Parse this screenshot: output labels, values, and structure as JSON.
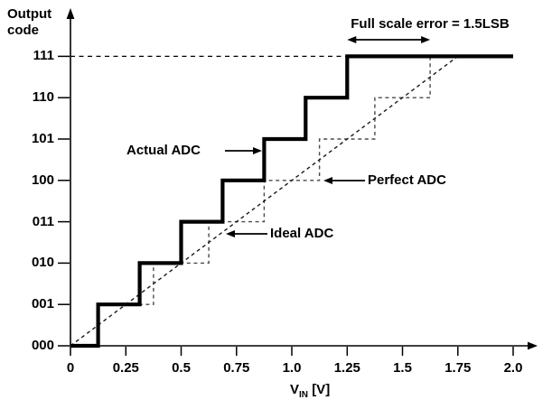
{
  "y_axis_title": {
    "line1": "Output",
    "line2": "code"
  },
  "x_axis_title": {
    "main": "V",
    "sub": "IN",
    "unit": "[V]"
  },
  "chart_data": {
    "type": "line",
    "subtype": "ADC transfer characteristic (staircase)",
    "title": "",
    "xlabel": "VIN [V]",
    "ylabel": "Output code",
    "xlim": [
      0,
      2.0
    ],
    "grid": false,
    "x_tick_values": [
      0,
      0.25,
      0.5,
      0.75,
      1.0,
      1.25,
      1.5,
      1.75,
      2.0
    ],
    "x_tick_labels": [
      "0",
      "0.25",
      "0.5",
      "0.75",
      "1.0",
      "1.25",
      "1.5",
      "1.75",
      "2.0"
    ],
    "y_tick_codes": [
      0,
      1,
      2,
      3,
      4,
      5,
      6,
      7
    ],
    "y_tick_labels": [
      "000",
      "001",
      "010",
      "011",
      "100",
      "101",
      "110",
      "111"
    ],
    "series": [
      {
        "name": "Actual ADC",
        "type": "staircase",
        "style": "solid-thick",
        "color": "#000000",
        "start_code": 0,
        "transitions_V": [
          0.125,
          0.3125,
          0.5,
          0.6875,
          0.875,
          1.0625,
          1.25
        ],
        "end_V": 2.0
      },
      {
        "name": "Perfect ADC",
        "type": "staircase",
        "style": "dashed",
        "color": "#4a4a4a",
        "start_code": 0,
        "transitions_V": [
          0.125,
          0.375,
          0.625,
          0.875,
          1.125,
          1.375,
          1.625
        ],
        "end_V": 2.0
      },
      {
        "name": "Ideal ADC",
        "type": "straight-line",
        "style": "dashed",
        "color": "#1a1a1a",
        "points": [
          {
            "V": 0,
            "code": 0
          },
          {
            "V": 1.75,
            "code": 7
          }
        ]
      }
    ],
    "reference_line": {
      "code": 7,
      "at_label": "111",
      "from_V": 0,
      "to_V": 1.25,
      "style": "dashed"
    },
    "full_scale_error": {
      "text": "Full scale error = 1.5LSB",
      "arrow_from_V": 1.25,
      "arrow_to_V": 1.625,
      "value_LSB": 1.5
    }
  }
}
